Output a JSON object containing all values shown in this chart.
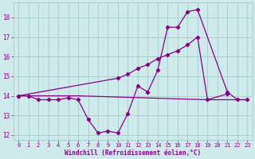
{
  "x_zigzag": [
    0,
    1,
    2,
    3,
    4,
    5,
    6,
    7,
    8,
    9,
    10,
    11,
    12,
    13,
    14,
    15,
    16,
    17,
    18,
    21,
    22,
    23
  ],
  "y_zigzag": [
    14.0,
    14.0,
    13.8,
    13.8,
    13.8,
    13.9,
    13.8,
    12.8,
    12.1,
    12.2,
    12.1,
    13.1,
    14.5,
    14.2,
    15.3,
    17.5,
    17.5,
    18.3,
    18.4,
    14.2,
    13.8,
    13.8
  ],
  "x_diag": [
    0,
    10,
    11,
    12,
    13,
    14,
    15,
    16,
    17,
    18,
    19,
    21
  ],
  "y_diag": [
    14.0,
    14.9,
    15.1,
    15.4,
    15.6,
    15.9,
    16.1,
    16.3,
    16.6,
    17.0,
    13.8,
    14.1
  ],
  "x_flat": [
    0,
    1,
    2,
    3,
    4,
    5,
    6,
    19,
    20,
    21,
    22,
    23
  ],
  "y_flat": [
    14.0,
    14.0,
    14.0,
    14.0,
    14.0,
    14.0,
    14.0,
    13.8,
    13.8,
    13.8,
    13.8,
    13.8
  ],
  "background_color": "#ceeaea",
  "grid_color": "#aad0d0",
  "line_color": "#880088",
  "xlabel": "Windchill (Refroidissement éolien,°C)",
  "xlim": [
    -0.5,
    23.5
  ],
  "ylim": [
    11.75,
    18.75
  ],
  "yticks": [
    12,
    13,
    14,
    15,
    16,
    17,
    18
  ],
  "xticks": [
    0,
    1,
    2,
    3,
    4,
    5,
    6,
    7,
    8,
    9,
    10,
    11,
    12,
    13,
    14,
    15,
    16,
    17,
    18,
    19,
    20,
    21,
    22,
    23
  ]
}
